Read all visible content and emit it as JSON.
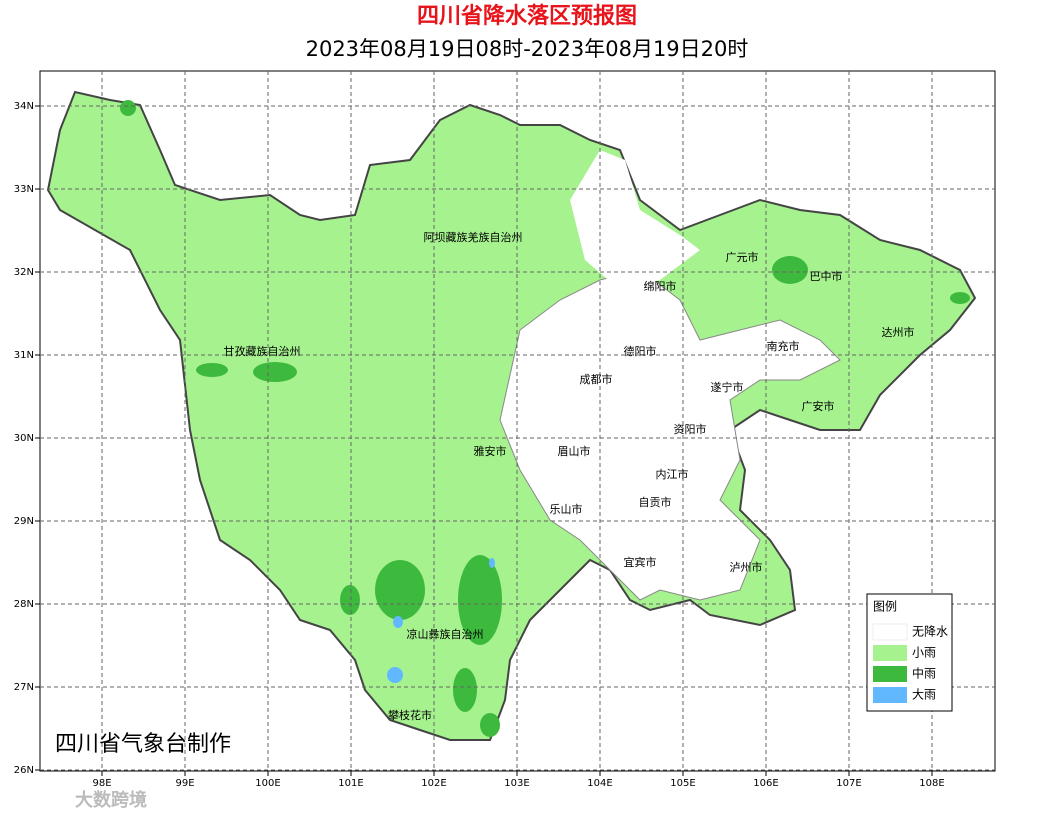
{
  "header": {
    "title": "四川省降水落区预报图",
    "subtitle": "2023年08月19日08时-2023年08月19日20时"
  },
  "map": {
    "lon_labels": [
      "98E",
      "99E",
      "100E",
      "101E",
      "102E",
      "103E",
      "104E",
      "105E",
      "106E",
      "107E",
      "108E"
    ],
    "lat_labels": [
      "34N",
      "33N",
      "32N",
      "31N",
      "30N",
      "29N",
      "28N",
      "27N",
      "26N"
    ],
    "regions": [
      "阿坝藏族羌族自治州",
      "甘孜藏族自治州",
      "凉山彝族自治州",
      "攀枝花市",
      "雅安市",
      "眉山市",
      "乐山市",
      "成都市",
      "德阳市",
      "绵阳市",
      "广元市",
      "巴中市",
      "达州市",
      "南充市",
      "遂宁市",
      "广安市",
      "资阳市",
      "内江市",
      "自贡市",
      "宜宾市",
      "泸州市"
    ]
  },
  "legend": {
    "title": "图例",
    "items": [
      "无降水",
      "小雨",
      "中雨",
      "大雨"
    ]
  },
  "credit": "四川省气象台制作",
  "watermark": "大数跨境"
}
